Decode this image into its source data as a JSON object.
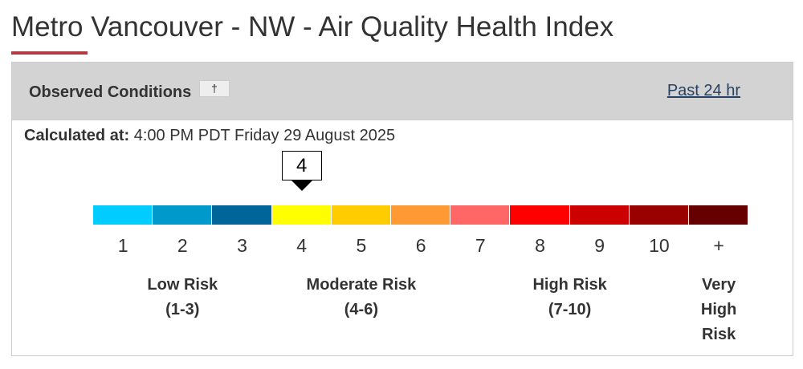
{
  "header": {
    "title": "Metro Vancouver - NW - Air Quality Health Index"
  },
  "panel": {
    "heading": "Observed Conditions",
    "button": "†",
    "link": "Past 24 hr"
  },
  "observation": {
    "label": "Calculated at:",
    "time": "4:00 PM PDT Friday 29 August 2025",
    "current": 4
  },
  "scale": [
    {
      "label": "1",
      "color": "#00ccff"
    },
    {
      "label": "2",
      "color": "#0099cc"
    },
    {
      "label": "3",
      "color": "#006699"
    },
    {
      "label": "4",
      "color": "#ffff00"
    },
    {
      "label": "5",
      "color": "#ffcc00"
    },
    {
      "label": "6",
      "color": "#ff9933"
    },
    {
      "label": "7",
      "color": "#ff6666"
    },
    {
      "label": "8",
      "color": "#ff0000"
    },
    {
      "label": "9",
      "color": "#cc0000"
    },
    {
      "label": "10",
      "color": "#990000"
    },
    {
      "label": "+",
      "color": "#660000"
    }
  ],
  "risk_groups": [
    {
      "name": "Low Risk",
      "range": "(1-3)"
    },
    {
      "name": "Moderate Risk",
      "range": "(4-6)"
    },
    {
      "name": "High Risk",
      "range": "(7-10)"
    },
    {
      "name": "Very High Risk"
    }
  ]
}
